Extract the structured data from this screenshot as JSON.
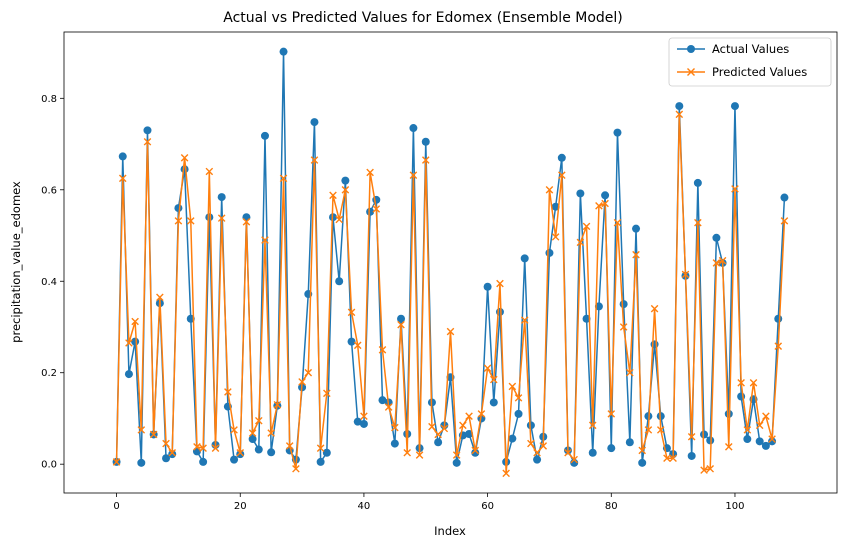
{
  "chart_data": {
    "type": "line",
    "title": "Actual vs Predicted Values for Edomex (Ensemble Model)",
    "xlabel": "Index",
    "ylabel": "precipitation_value_edomex",
    "xlim": [
      -8.5,
      116.5
    ],
    "ylim": [
      -0.063,
      0.945
    ],
    "xticks": [
      0,
      20,
      40,
      60,
      80,
      100
    ],
    "yticks": [
      0.0,
      0.2,
      0.4,
      0.6,
      0.8
    ],
    "ytick_labels": [
      "0.0",
      "0.2",
      "0.4",
      "0.6",
      "0.8"
    ],
    "grid": false,
    "legend_position": "top-right",
    "series": [
      {
        "name": "Actual Values",
        "color": "#1f77b4",
        "marker": "circle",
        "values": [
          0.005,
          0.673,
          0.197,
          0.268,
          0.003,
          0.73,
          0.065,
          0.352,
          0.013,
          0.022,
          0.56,
          0.645,
          0.318,
          0.028,
          0.005,
          0.54,
          0.042,
          0.584,
          0.126,
          0.01,
          0.022,
          0.54,
          0.055,
          0.032,
          0.718,
          0.026,
          0.128,
          0.902,
          0.03,
          0.01,
          0.168,
          0.372,
          0.748,
          0.005,
          0.025,
          0.54,
          0.4,
          0.62,
          0.268,
          0.093,
          0.088,
          0.552,
          0.578,
          0.14,
          0.135,
          0.045,
          0.318,
          0.066,
          0.735,
          0.035,
          0.705,
          0.135,
          0.048,
          0.085,
          0.19,
          0.003,
          0.063,
          0.066,
          0.025,
          0.1,
          0.388,
          0.135,
          0.333,
          0.005,
          0.056,
          0.11,
          0.45,
          0.085,
          0.01,
          0.06,
          0.462,
          0.563,
          0.67,
          0.03,
          0.003,
          0.592,
          0.318,
          0.025,
          0.345,
          0.588,
          0.035,
          0.725,
          0.35,
          0.048,
          0.515,
          0.003,
          0.105,
          0.262,
          0.105,
          0.035,
          0.022,
          0.783,
          0.412,
          0.018,
          0.615,
          0.065,
          0.052,
          0.495,
          0.44,
          0.11,
          0.783,
          0.148,
          0.055,
          0.142,
          0.05,
          0.04,
          0.05,
          0.318,
          0.583
        ]
      },
      {
        "name": "Predicted Values",
        "color": "#ff7f0e",
        "marker": "x",
        "values": [
          0.005,
          0.625,
          0.265,
          0.312,
          0.075,
          0.705,
          0.065,
          0.365,
          0.045,
          0.025,
          0.532,
          0.67,
          0.532,
          0.038,
          0.035,
          0.64,
          0.035,
          0.538,
          0.158,
          0.075,
          0.025,
          0.53,
          0.068,
          0.095,
          0.49,
          0.068,
          0.13,
          0.625,
          0.04,
          -0.01,
          0.18,
          0.2,
          0.665,
          0.035,
          0.155,
          0.588,
          0.535,
          0.6,
          0.332,
          0.26,
          0.105,
          0.638,
          0.558,
          0.25,
          0.125,
          0.08,
          0.305,
          0.025,
          0.632,
          0.02,
          0.665,
          0.082,
          0.065,
          0.078,
          0.29,
          0.02,
          0.085,
          0.105,
          0.03,
          0.11,
          0.21,
          0.185,
          0.395,
          -0.02,
          0.17,
          0.145,
          0.315,
          0.045,
          0.025,
          0.04,
          0.6,
          0.497,
          0.632,
          0.025,
          0.01,
          0.485,
          0.52,
          0.085,
          0.565,
          0.57,
          0.11,
          0.528,
          0.3,
          0.2,
          0.458,
          0.03,
          0.075,
          0.34,
          0.075,
          0.013,
          0.013,
          0.765,
          0.415,
          0.06,
          0.528,
          -0.013,
          -0.01,
          0.44,
          0.445,
          0.038,
          0.602,
          0.178,
          0.075,
          0.178,
          0.085,
          0.105,
          0.055,
          0.258,
          0.532
        ]
      }
    ]
  }
}
